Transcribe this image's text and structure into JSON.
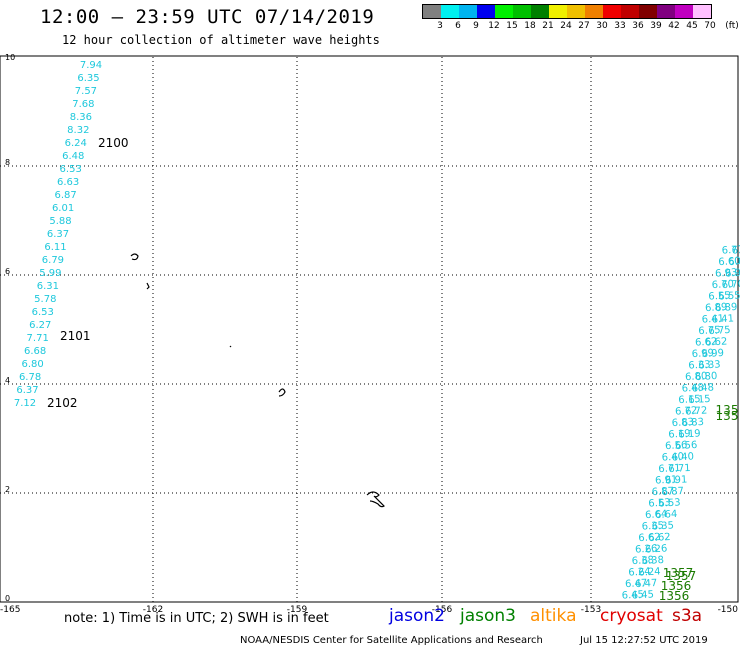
{
  "header": {
    "title": "12:00 — 23:59 UTC 07/14/2019",
    "subtitle": "12 hour collection of altimeter wave heights"
  },
  "legend": {
    "colors": [
      "#808080",
      "#00f0f0",
      "#00b4f0",
      "#0000f0",
      "#00f000",
      "#00c000",
      "#008000",
      "#f0f000",
      "#f0c000",
      "#f08000",
      "#f00000",
      "#c00000",
      "#800000",
      "#800080",
      "#c000c0",
      "#ffc0ff"
    ],
    "labels": [
      "3",
      "6",
      "9",
      "12",
      "15",
      "18",
      "21",
      "24",
      "27",
      "30",
      "33",
      "36",
      "39",
      "42",
      "45",
      "70",
      "(ft)"
    ]
  },
  "axes": {
    "x_ticks": [
      "-165",
      "-162",
      "-159",
      "-156",
      "-153",
      "-150"
    ],
    "y_ticks": [
      "0",
      "2",
      "4",
      "6",
      "8",
      "10"
    ]
  },
  "track_west": {
    "color": "#1ec8dc",
    "values": [
      "7.94",
      "6.35",
      "7.57",
      "7.68",
      "8.36",
      "8.32",
      "6.24",
      "6.48",
      "6.53",
      "6.63",
      "6.87",
      "6.01",
      "5.88",
      "6.37",
      "6.11",
      "6.79",
      "5.99",
      "6.31",
      "5.78",
      "6.53",
      "6.27",
      "7.71",
      "6.68",
      "6.80",
      "6.78",
      "6.37",
      "7.12"
    ]
  },
  "time_labels": [
    {
      "text": "2100"
    },
    {
      "text": "2101"
    },
    {
      "text": "2102"
    }
  ],
  "track_east": {
    "color": "#1ec8dc",
    "values": [
      "6.45",
      "6.47",
      "6.24",
      "6.38",
      "6.26",
      "6.62",
      "6.35",
      "6.64",
      "6.53",
      "6.87",
      "6.91",
      "6.71",
      "6.40",
      "6.56",
      "6.19",
      "6.83",
      "6.72",
      "6.15",
      "6.48",
      "6.80",
      "6.33",
      "6.99",
      "6.62",
      "6.75",
      "6.41",
      "6.89",
      "6.55",
      "6.70",
      "6.93",
      "6.60",
      "6.77"
    ]
  },
  "green_labels": {
    "color": "#1a7a00",
    "values": [
      "1356",
      "1356",
      "1357",
      "1357",
      "135",
      "135"
    ]
  },
  "footer": {
    "note": "note: 1) Time is in UTC; 2) SWH is in feet",
    "satellites": [
      {
        "name": "jason2",
        "color": "#0000e0"
      },
      {
        "name": "jason3",
        "color": "#008000"
      },
      {
        "name": "altika",
        "color": "#ff9000"
      },
      {
        "name": "cryosat",
        "color": "#e00000"
      },
      {
        "name": "s3a",
        "color": "#c00000"
      }
    ],
    "credit": "NOAA/NESDIS Center for Satellite Applications and Research",
    "timestamp": "Jul 15 12:27:52 UTC 2019"
  }
}
